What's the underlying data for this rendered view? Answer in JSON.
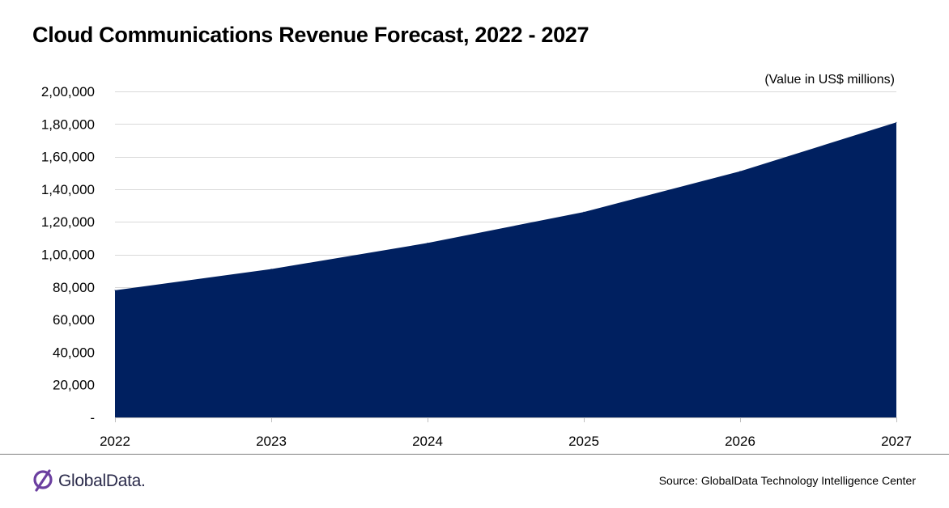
{
  "title": "Cloud Communications Revenue Forecast, 2022 - 2027",
  "unit_note": "(Value in US$ millions)",
  "chart_data": {
    "type": "area",
    "title": "Cloud Communications Revenue Forecast, 2022 - 2027",
    "x": [
      "2022",
      "2023",
      "2024",
      "2025",
      "2026",
      "2027"
    ],
    "values": [
      78000,
      91000,
      107000,
      126000,
      151000,
      181000
    ],
    "ylim": [
      0,
      200000
    ],
    "yticks": [
      0,
      20000,
      40000,
      60000,
      80000,
      100000,
      120000,
      140000,
      160000,
      180000,
      200000
    ],
    "ytick_labels": [
      "-",
      "20,000",
      "40,000",
      "60,000",
      "80,000",
      "1,00,000",
      "1,20,000",
      "1,40,000",
      "1,60,000",
      "1,80,000",
      "2,00,000"
    ],
    "grid": true,
    "fill_color": "#002060"
  },
  "footer": {
    "logo_text": "GlobalData.",
    "source": "Source:  GlobalData Technology Intelligence Center"
  },
  "colors": {
    "logo_icon": "#6b3fa0",
    "grid": "#d9d9d9"
  }
}
